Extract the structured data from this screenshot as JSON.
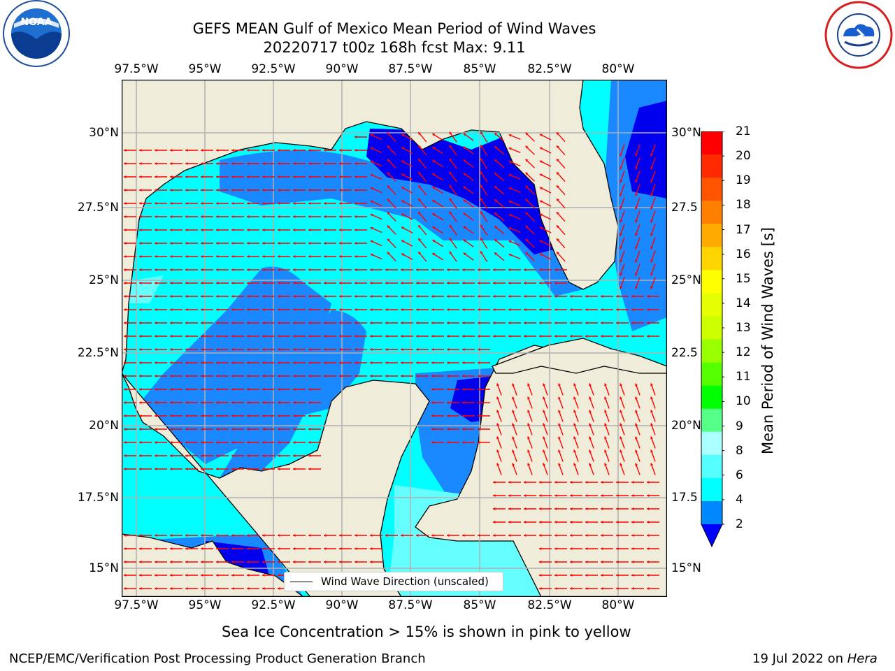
{
  "title_line1": "GEFS MEAN Gulf of Mexico Mean Period of Wind Waves",
  "title_line2": "20220717 t00z 168h fcst   Max: 9.11",
  "lon_ticks": [
    "97.5°W",
    "95°W",
    "92.5°W",
    "90°W",
    "87.5°W",
    "85°W",
    "82.5°W",
    "80°W"
  ],
  "lat_ticks_left": [
    "30°N",
    "27.5°N",
    "25°N",
    "22.5°N",
    "20°N",
    "17.5°N",
    "15°N"
  ],
  "lat_ticks_right": [
    "30°N",
    "27.5",
    "25°N",
    "22.5",
    "20°N",
    "17.5",
    "15°N"
  ],
  "colorbar": {
    "label": "Mean Period of Wind Waves [s]",
    "ticks": [
      "21",
      "20",
      "19",
      "18",
      "17",
      "16",
      "15",
      "14",
      "13",
      "12",
      "11",
      "10",
      "9",
      "8",
      "6",
      "4",
      "2"
    ],
    "colors": [
      "#ff0000",
      "#ff2a00",
      "#ff5500",
      "#ff8000",
      "#ffaa00",
      "#ffd500",
      "#ffff00",
      "#e6ff00",
      "#ccff00",
      "#99ff00",
      "#55ff00",
      "#00ff00",
      "#55ff88",
      "#aaffff",
      "#55ffff",
      "#00ffff",
      "#0088ff"
    ],
    "extend_color": "#0000ff"
  },
  "legend": {
    "label": "Wind Wave Direction (unscaled)"
  },
  "ice_note": "Sea Ice Concentration > 15% is shown in pink to yellow",
  "footer_left": "NCEP/EMC/Verification Post Processing Product Generation Branch",
  "footer_date": "19 Jul 2022 on ",
  "footer_host": "Hera",
  "logos": {
    "noara": "NOAA",
    "nws": "NATIONAL WEATHER SERVICE"
  },
  "map_colors": {
    "land": "#efedd9",
    "cyan": "#00ffff",
    "mid": "#1a88ff",
    "deep": "#0000ee",
    "pale": "#66ffff",
    "green": "#55ff88",
    "arrow": "#ff0000"
  }
}
